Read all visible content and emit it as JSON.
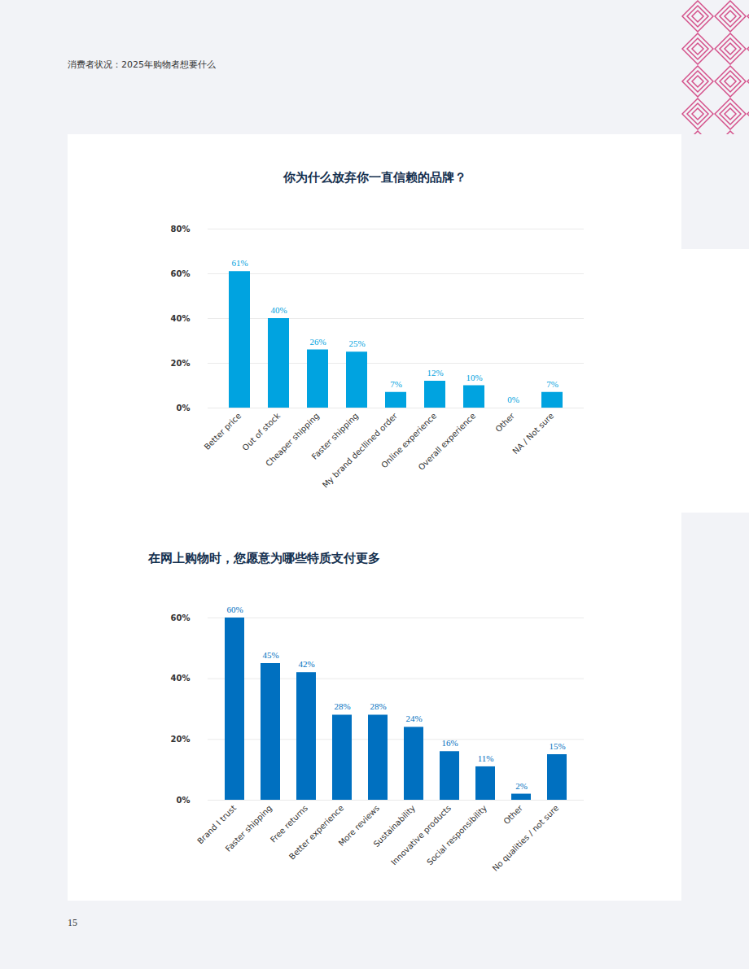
{
  "header": "消费者状况：2025年购物者想要什么",
  "page_number": "15",
  "chart_data": [
    {
      "type": "bar",
      "title": "你为什么放弃你一直信赖的品牌？",
      "categories": [
        "Better price",
        "Out of stock",
        "Cheaper shipping",
        "Faster shipping",
        "My brand decllined order",
        "Online experience",
        "Overall experience",
        "Other",
        "NA / Not sure"
      ],
      "values": [
        61,
        40,
        26,
        25,
        7,
        12,
        10,
        0,
        7
      ],
      "value_labels": [
        "61%",
        "40%",
        "26%",
        "25%",
        "7%",
        "12%",
        "10%",
        "0%",
        "7%"
      ],
      "color": "#00a3e0",
      "ylim": [
        0,
        80
      ],
      "yticks": [
        {
          "value": 0,
          "label": "0%"
        },
        {
          "value": 20,
          "label": "20%"
        },
        {
          "value": 40,
          "label": "40%"
        },
        {
          "value": 60,
          "label": "60%"
        },
        {
          "value": 80,
          "label": "80%"
        }
      ],
      "grid": true,
      "data_labels": true
    },
    {
      "type": "bar",
      "title": "在网上购物时，您愿意为哪些特质支付更多",
      "categories": [
        "Brand I trust",
        "Faster shipping",
        "Free returns",
        "Better experience",
        "More reviews",
        "Sustainability",
        "Innovative products",
        "Social responsibility",
        "Other",
        "No qualities / not sure"
      ],
      "values": [
        60,
        45,
        42,
        28,
        28,
        24,
        16,
        11,
        2,
        15
      ],
      "value_labels": [
        "60%",
        "45%",
        "42%",
        "28%",
        "28%",
        "24%",
        "16%",
        "11%",
        "2%",
        "15%"
      ],
      "color": "#0070c0",
      "ylim": [
        0,
        60
      ],
      "yticks": [
        {
          "value": 0,
          "label": "0%"
        },
        {
          "value": 20,
          "label": "20%"
        },
        {
          "value": 40,
          "label": "40%"
        },
        {
          "value": 60,
          "label": "60%"
        }
      ],
      "grid": true,
      "data_labels": true
    }
  ]
}
